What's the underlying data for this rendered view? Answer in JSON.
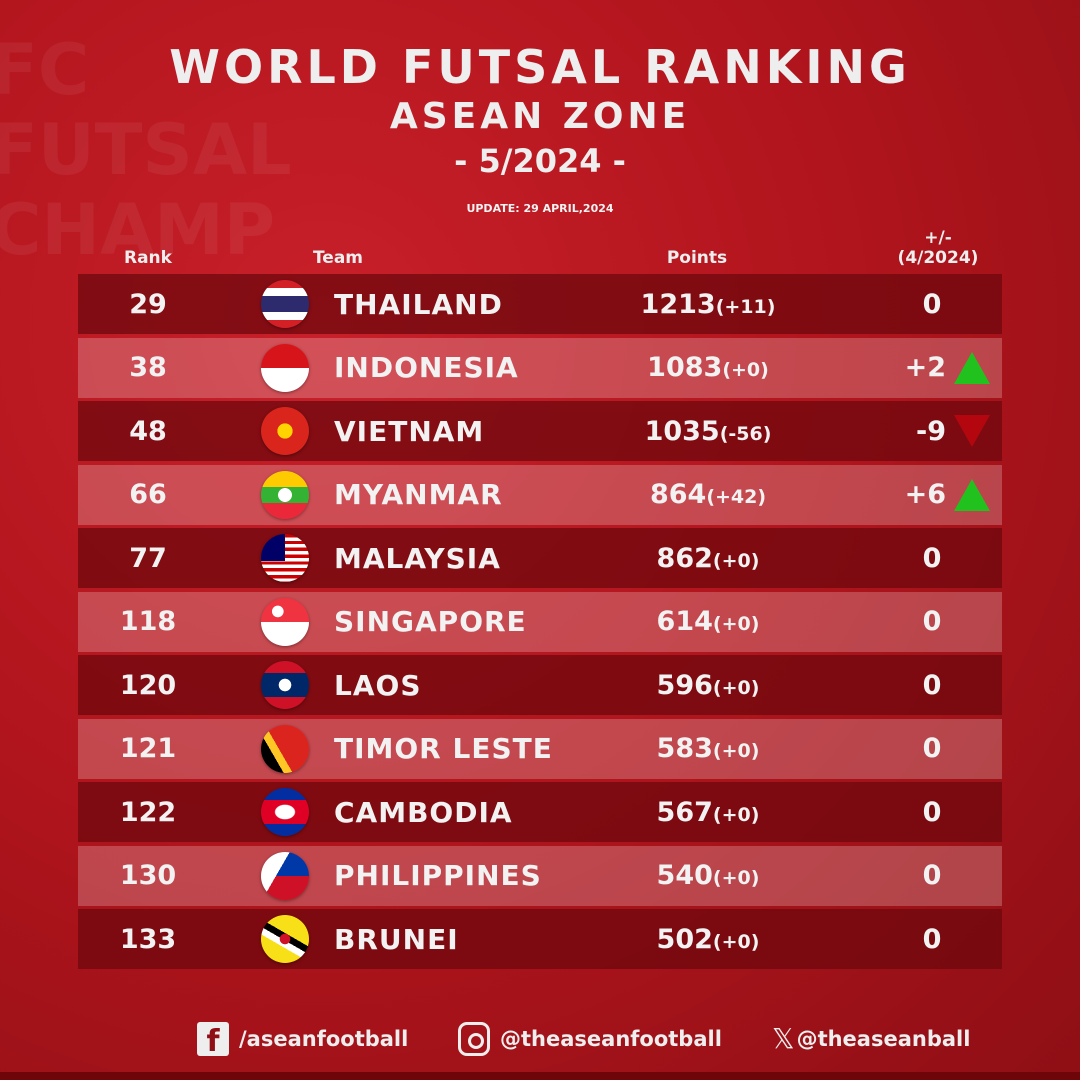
{
  "header": {
    "title": "WORLD FUTSAL RANKING",
    "subtitle": "ASEAN ZONE",
    "period": "- 5/2024 -",
    "update": "UPDATE: 29 APRIL,2024"
  },
  "columns": {
    "rank": "Rank",
    "team": "Team",
    "points": "Points",
    "change_line1": "+/-",
    "change_line2": "(4/2024)"
  },
  "rows": [
    {
      "rank": "29",
      "team": "THAILAND",
      "points": "1213",
      "delta": "(+11)",
      "change": "0",
      "trend": "none",
      "flag": "thailand"
    },
    {
      "rank": "38",
      "team": "INDONESIA",
      "points": "1083",
      "delta": "(+0)",
      "change": "+2",
      "trend": "up",
      "flag": "indonesia"
    },
    {
      "rank": "48",
      "team": "VIETNAM",
      "points": "1035",
      "delta": "(-56)",
      "change": "-9",
      "trend": "down",
      "flag": "vietnam"
    },
    {
      "rank": "66",
      "team": "MYANMAR",
      "points": "864",
      "delta": "(+42)",
      "change": "+6",
      "trend": "up",
      "flag": "myanmar"
    },
    {
      "rank": "77",
      "team": "MALAYSIA",
      "points": "862",
      "delta": "(+0)",
      "change": "0",
      "trend": "none",
      "flag": "malaysia"
    },
    {
      "rank": "118",
      "team": "SINGAPORE",
      "points": "614",
      "delta": "(+0)",
      "change": "0",
      "trend": "none",
      "flag": "singapore"
    },
    {
      "rank": "120",
      "team": "LAOS",
      "points": "596",
      "delta": "(+0)",
      "change": "0",
      "trend": "none",
      "flag": "laos"
    },
    {
      "rank": "121",
      "team": "TIMOR LESTE",
      "points": "583",
      "delta": "(+0)",
      "change": "0",
      "trend": "none",
      "flag": "timor-leste"
    },
    {
      "rank": "122",
      "team": "CAMBODIA",
      "points": "567",
      "delta": "(+0)",
      "change": "0",
      "trend": "none",
      "flag": "cambodia"
    },
    {
      "rank": "130",
      "team": "PHILIPPINES",
      "points": "540",
      "delta": "(+0)",
      "change": "0",
      "trend": "none",
      "flag": "philippines"
    },
    {
      "rank": "133",
      "team": "BRUNEI",
      "points": "502",
      "delta": "(+0)",
      "change": "0",
      "trend": "none",
      "flag": "brunei"
    }
  ],
  "footer": {
    "facebook": "/aseanfootball",
    "instagram": "@theaseanfootball",
    "x": "@theaseanball"
  },
  "colors": {
    "up": "#22c21e",
    "down": "#b3060e",
    "background": "#b0141c"
  }
}
